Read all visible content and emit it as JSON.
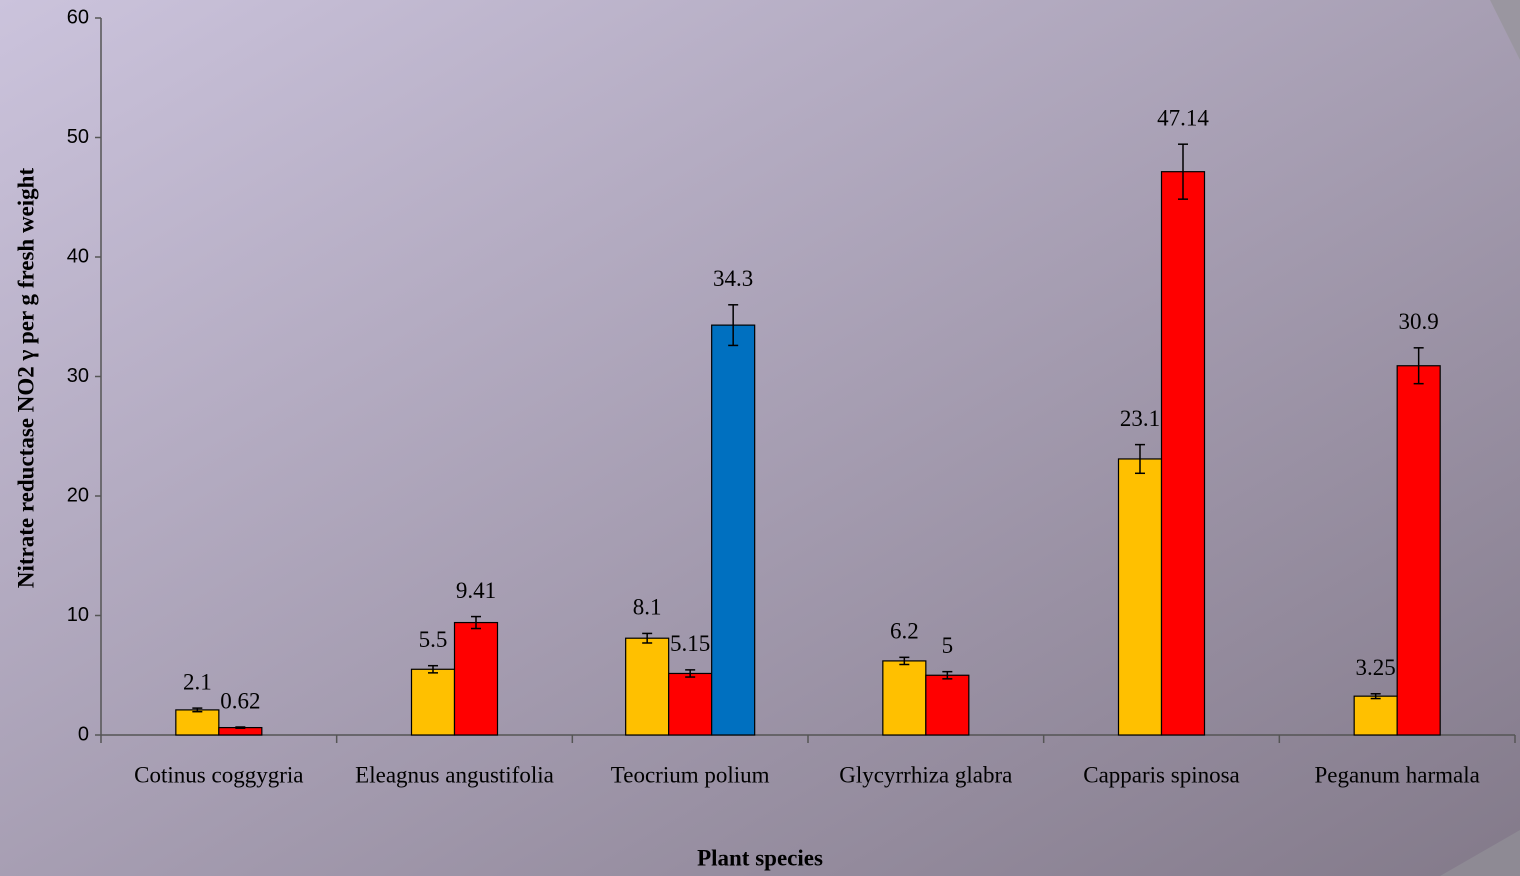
{
  "chart_data": {
    "type": "bar",
    "ylabel": "Nitrate reductase NO2 γ per g fresh weight",
    "xlabel": "Plant species",
    "categories": [
      "Cotinus coggygria",
      "Eleagnus angustifolia",
      "Teocrium polium",
      "Glycyrrhiza glabra",
      "Capparis spinosa",
      "Peganum harmala"
    ],
    "series": [
      {
        "color": "#ffc000",
        "values": [
          2.1,
          5.5,
          8.1,
          6.2,
          23.1,
          3.25
        ],
        "errors": [
          0.15,
          0.3,
          0.4,
          0.3,
          1.2,
          0.2
        ]
      },
      {
        "color": "#ff0000",
        "values": [
          0.62,
          9.41,
          5.15,
          5,
          47.14,
          30.9
        ],
        "errors": [
          0.05,
          0.5,
          0.3,
          0.3,
          2.3,
          1.5
        ]
      },
      {
        "color": "#0070c0",
        "values": [
          null,
          null,
          34.3,
          null,
          null,
          null
        ],
        "errors": [
          null,
          null,
          1.7,
          null,
          null,
          null
        ]
      }
    ],
    "ylim": [
      0,
      60
    ],
    "yticks": [
      0,
      10,
      20,
      30,
      40,
      50,
      60
    ]
  }
}
